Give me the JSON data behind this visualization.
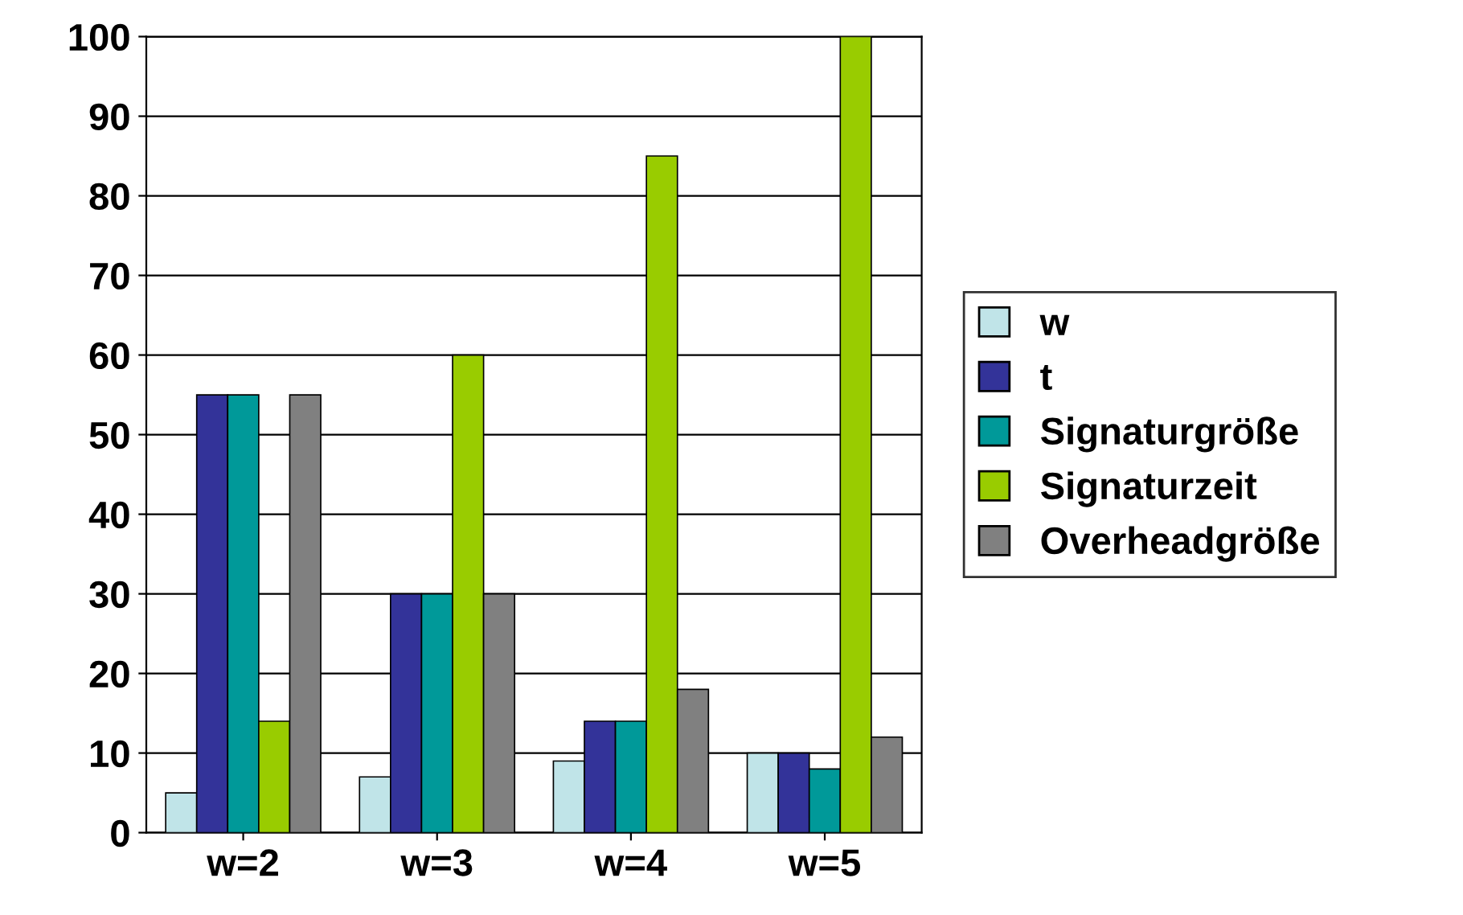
{
  "chart_data": {
    "type": "bar",
    "categories": [
      "w=2",
      "w=3",
      "w=4",
      "w=5"
    ],
    "series": [
      {
        "name": "w",
        "color": "#c0e4e8",
        "values": [
          5,
          7,
          9,
          10
        ]
      },
      {
        "name": "t",
        "color": "#333399",
        "values": [
          55,
          30,
          14,
          10
        ]
      },
      {
        "name": "Signaturgröße",
        "color": "#009999",
        "values": [
          55,
          30,
          14,
          8
        ]
      },
      {
        "name": "Signaturzeit",
        "color": "#99cc00",
        "values": [
          14,
          60,
          85,
          100
        ]
      },
      {
        "name": "Overheadgröße",
        "color": "#808080",
        "values": [
          55,
          30,
          18,
          12
        ]
      }
    ],
    "ylim": [
      0,
      100
    ],
    "yticks": [
      0,
      10,
      20,
      30,
      40,
      50,
      60,
      70,
      80,
      90,
      100
    ],
    "grid": "y",
    "legend": "right"
  }
}
